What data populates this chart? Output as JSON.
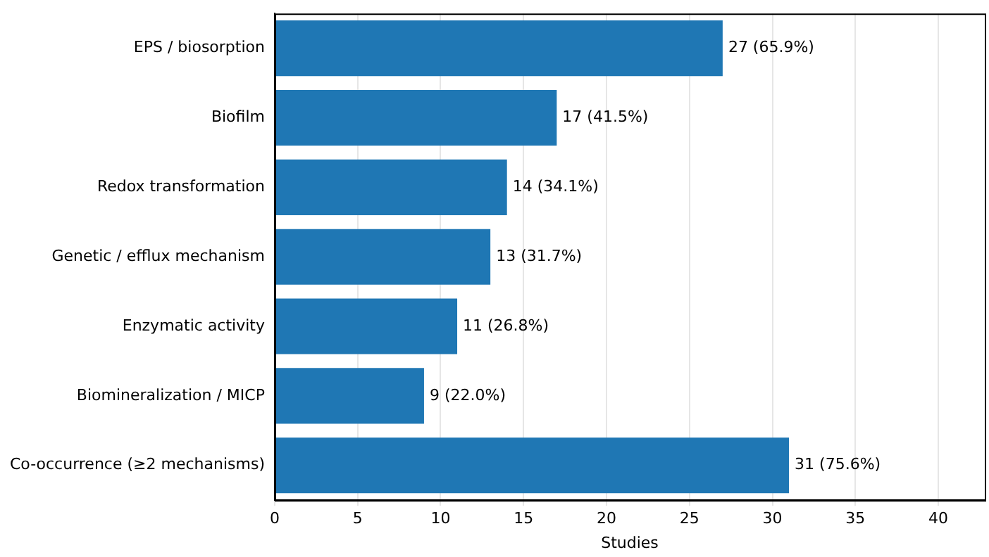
{
  "chart_data": {
    "type": "bar",
    "orientation": "horizontal",
    "xlabel": "Studies",
    "categories": [
      "EPS / biosorption",
      "Biofilm",
      "Redox transformation",
      "Genetic / efflux mechanism",
      "Enzymatic activity",
      "Biomineralization / MICP",
      "Co-occurrence (≥2 mechanisms)"
    ],
    "values": [
      27,
      17,
      14,
      13,
      11,
      9,
      31
    ],
    "value_labels": [
      "27 (65.9%)",
      "17 (41.5%)",
      "14 (34.1%)",
      "13 (31.7%)",
      "11 (26.8%)",
      "9 (22.0%)",
      "31 (75.6%)"
    ],
    "color": "#1f77b4",
    "xlim": [
      0,
      42.8
    ],
    "xticks": [
      0,
      5,
      10,
      15,
      20,
      25,
      30,
      35,
      40
    ],
    "grid": "x",
    "legend": false
  }
}
